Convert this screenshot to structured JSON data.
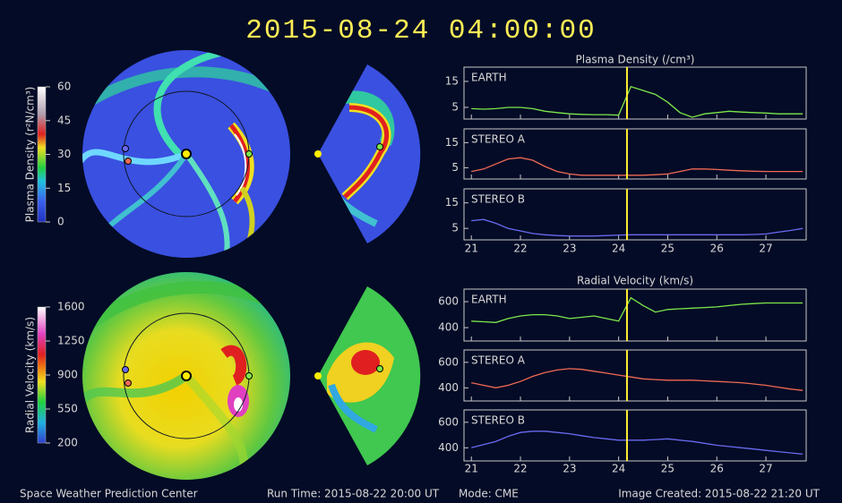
{
  "title": "2015-08-24  04:00:00",
  "footer": {
    "center": "Space Weather Prediction Center",
    "run_time": "Run Time: 2015-08-22 20:00 UT",
    "mode": "Mode: CME",
    "created": "Image Created: 2015-08-22 21:20 UT"
  },
  "colorbars": [
    {
      "label": "Plasma Density (r²N/cm³)",
      "lim": [
        0,
        60
      ],
      "ticks": [
        0,
        15,
        30,
        45,
        60
      ]
    },
    {
      "label": "Radial Velocity (km/s)",
      "lim": [
        200,
        1600
      ],
      "ticks": [
        200,
        550,
        900,
        1250,
        1600
      ]
    }
  ],
  "chart_data": [
    {
      "type": "line",
      "title": "Plasma Density (/cm³)",
      "x": [
        21,
        21.25,
        21.5,
        21.75,
        22,
        22.25,
        22.5,
        22.75,
        23,
        23.25,
        23.5,
        23.75,
        24,
        24.25,
        24.5,
        24.75,
        25,
        25.25,
        25.5,
        25.75,
        26,
        26.25,
        26.5,
        26.75,
        27,
        27.25,
        27.5,
        27.75
      ],
      "xlim": [
        20.85,
        27.82
      ],
      "xticks": [
        21,
        22,
        23,
        24,
        25,
        26,
        27
      ],
      "marker_x": 24.17,
      "series": [
        {
          "name": "EARTH",
          "color": "#7de84a",
          "ylim": [
            0.5,
            20.5
          ],
          "yticks": [
            5,
            15
          ],
          "values": [
            4.5,
            4.3,
            4.5,
            5,
            5,
            4.5,
            3.5,
            3,
            2.5,
            2.3,
            2.2,
            2.2,
            2,
            13,
            11.5,
            10,
            7,
            3,
            1.2,
            2.5,
            3,
            3.5,
            3.2,
            3,
            2.8,
            2.5,
            2.5,
            2.5
          ]
        },
        {
          "name": "STEREO A",
          "color": "#f06a55",
          "ylim": [
            0.5,
            20.5
          ],
          "yticks": [
            5,
            15
          ],
          "values": [
            3.5,
            4.5,
            6.5,
            8.5,
            9,
            8,
            5.5,
            3.5,
            2.5,
            2,
            2,
            2,
            2,
            2,
            2,
            2.2,
            2.5,
            3.5,
            4.5,
            4.5,
            4.3,
            4,
            3.8,
            3.6,
            3.5,
            3.5,
            3.5,
            3.5
          ]
        },
        {
          "name": "STEREO B",
          "color": "#6a6af0",
          "ylim": [
            0.5,
            20.5
          ],
          "yticks": [
            5,
            15
          ],
          "values": [
            8,
            8.5,
            7,
            5,
            4,
            3,
            2.5,
            2.2,
            2,
            2,
            2,
            2.2,
            2.4,
            2.5,
            2.5,
            2.5,
            2.5,
            2.5,
            2.5,
            2.5,
            2.5,
            2.5,
            2.5,
            2.6,
            2.8,
            3.5,
            4.2,
            5
          ]
        }
      ]
    },
    {
      "type": "line",
      "title": "Radial Velocity (km/s)",
      "x": [
        21,
        21.25,
        21.5,
        21.75,
        22,
        22.25,
        22.5,
        22.75,
        23,
        23.25,
        23.5,
        23.75,
        24,
        24.25,
        24.5,
        24.75,
        25,
        25.25,
        25.5,
        25.75,
        26,
        26.25,
        26.5,
        26.75,
        27,
        27.25,
        27.5,
        27.75
      ],
      "xlim": [
        20.85,
        27.82
      ],
      "xticks": [
        21,
        22,
        23,
        24,
        25,
        26,
        27
      ],
      "marker_x": 24.17,
      "series": [
        {
          "name": "EARTH",
          "color": "#7de84a",
          "ylim": [
            297,
            697
          ],
          "yticks": [
            400,
            600
          ],
          "values": [
            450,
            445,
            440,
            470,
            490,
            500,
            500,
            490,
            470,
            480,
            490,
            470,
            450,
            630,
            570,
            520,
            540,
            545,
            550,
            555,
            560,
            570,
            580,
            585,
            590,
            590,
            590,
            590
          ]
        },
        {
          "name": "STEREO A",
          "color": "#f06a55",
          "ylim": [
            297,
            697
          ],
          "yticks": [
            400,
            600
          ],
          "values": [
            440,
            420,
            400,
            420,
            450,
            490,
            520,
            540,
            550,
            545,
            530,
            515,
            500,
            485,
            470,
            465,
            460,
            460,
            460,
            455,
            450,
            445,
            440,
            430,
            420,
            405,
            390,
            380
          ]
        },
        {
          "name": "STEREO B",
          "color": "#6a6af0",
          "ylim": [
            297,
            697
          ],
          "yticks": [
            400,
            600
          ],
          "values": [
            400,
            425,
            450,
            490,
            520,
            530,
            530,
            520,
            510,
            495,
            480,
            470,
            460,
            460,
            460,
            465,
            470,
            460,
            450,
            435,
            420,
            410,
            400,
            390,
            380,
            370,
            360,
            350
          ]
        }
      ]
    }
  ]
}
